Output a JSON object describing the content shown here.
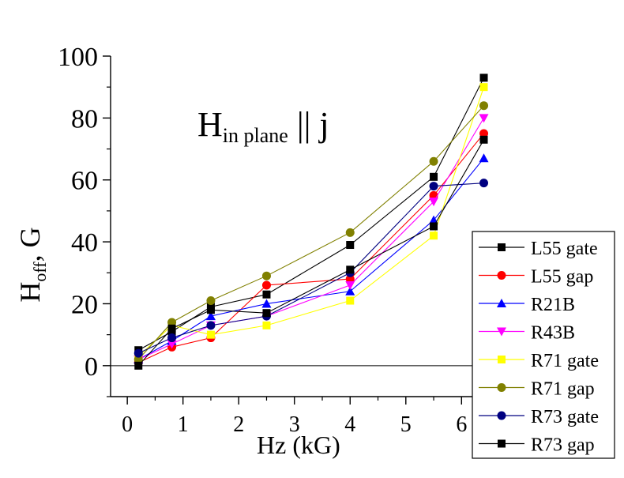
{
  "chart_data": {
    "type": "line",
    "title_main": "H",
    "title_sub": "in plane",
    "title_rest": " || j",
    "xlabel": "Hz (kG)",
    "ylabel_main": "H",
    "ylabel_sub": "off",
    "ylabel_rest": ", G",
    "xlim": [
      -0.3,
      7.3
    ],
    "ylim": [
      -10,
      100
    ],
    "xticks": [
      0,
      1,
      2,
      3,
      4,
      5,
      6
    ],
    "yticks": [
      0,
      20,
      40,
      60,
      80,
      100
    ],
    "xtick_labels": [
      "0",
      "1",
      "2",
      "3",
      "4",
      "5",
      "6"
    ],
    "ytick_labels": [
      "0",
      "20",
      "40",
      "60",
      "80",
      "100"
    ],
    "zero_line": true,
    "grid": false,
    "legend_position": "bottom-right",
    "x": [
      0.2,
      0.8,
      1.5,
      2.5,
      4.0,
      5.5,
      6.4
    ],
    "series": [
      {
        "name": "L55 gate",
        "color": "#000000",
        "marker": "square",
        "values": [
          5,
          11,
          19,
          23,
          39,
          61,
          93
        ]
      },
      {
        "name": "L55 gap",
        "color": "#ff0000",
        "marker": "circle",
        "values": [
          1,
          6,
          9,
          26,
          28,
          55,
          75
        ]
      },
      {
        "name": "R21B",
        "color": "#0000ff",
        "marker": "triangle-up",
        "values": [
          2,
          8,
          16,
          20,
          24,
          47,
          67
        ]
      },
      {
        "name": "R43B",
        "color": "#ff00ff",
        "marker": "triangle-down",
        "values": [
          2,
          7,
          13,
          16,
          26,
          53,
          80
        ]
      },
      {
        "name": "R71 gate",
        "color": "#ffff00",
        "marker": "square",
        "values": [
          3,
          13,
          10,
          13,
          21,
          42,
          90
        ]
      },
      {
        "name": "R71 gap",
        "color": "#808000",
        "marker": "circle",
        "values": [
          2,
          14,
          21,
          29,
          43,
          66,
          84
        ]
      },
      {
        "name": "R73 gate",
        "color": "#000080",
        "marker": "circle",
        "values": [
          4,
          9,
          13,
          16,
          30,
          58,
          59
        ]
      },
      {
        "name": "R73 gap",
        "color": "#000000",
        "marker": "square",
        "values": [
          0,
          12,
          18,
          17,
          31,
          45,
          73
        ]
      }
    ]
  }
}
